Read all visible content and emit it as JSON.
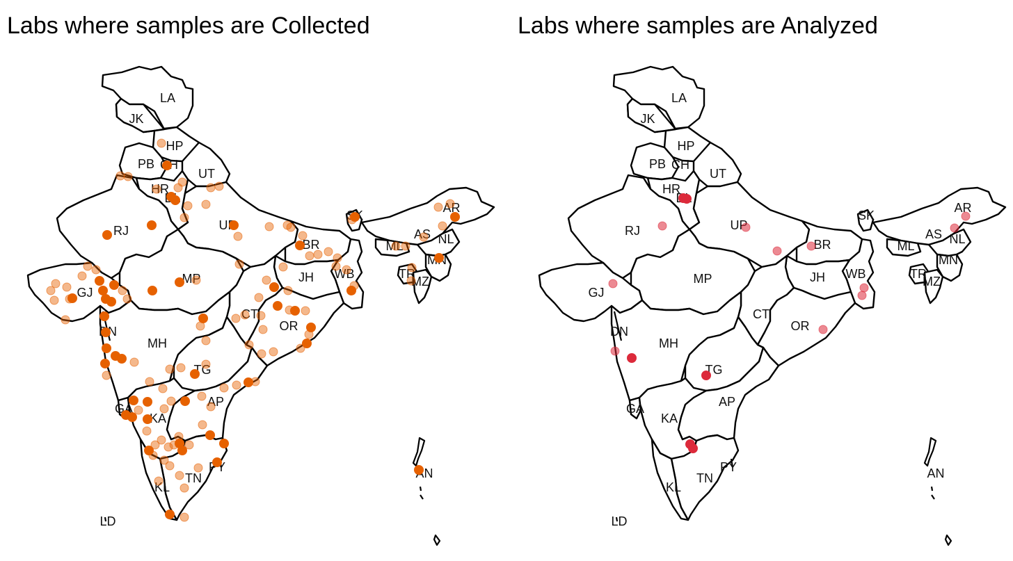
{
  "panels": [
    {
      "title": "Labs where samples are Collected",
      "point_color": "#E66100",
      "points": [
        [
          232,
          206,
          0.45
        ],
        [
          240,
          238,
          1
        ],
        [
          252,
          288,
          1
        ],
        [
          246,
          283,
          1
        ],
        [
          262,
          262,
          0.45
        ],
        [
          270,
          296,
          0.45
        ],
        [
          256,
          270,
          0.45
        ],
        [
          225,
          272,
          0.45
        ],
        [
          265,
          313,
          0.45
        ],
        [
          296,
          294,
          0.45
        ],
        [
          315,
          268,
          0.45
        ],
        [
          303,
          270,
          0.45
        ],
        [
          218,
          324,
          1
        ],
        [
          154,
          338,
          1
        ],
        [
          173,
          253,
          0.45
        ],
        [
          184,
          254,
          0.45
        ],
        [
          336,
          324,
          1
        ],
        [
          342,
          340,
          0.45
        ],
        [
          387,
          326,
          0.45
        ],
        [
          413,
          324,
          0.45
        ],
        [
          418,
          327,
          0.45
        ],
        [
          431,
          353,
          1
        ],
        [
          435,
          339,
          0.45
        ],
        [
          445,
          368,
          0.45
        ],
        [
          457,
          366,
          0.45
        ],
        [
          472,
          362,
          0.45
        ],
        [
          483,
          383,
          0.45
        ],
        [
          485,
          371,
          0.45
        ],
        [
          505,
          418,
          1
        ],
        [
          509,
          411,
          0.45
        ],
        [
          498,
          388,
          0.45
        ],
        [
          510,
          312,
          1
        ],
        [
          506,
          316,
          0.45
        ],
        [
          630,
          298,
          0.45
        ],
        [
          654,
          312,
          1
        ],
        [
          647,
          293,
          0.45
        ],
        [
          636,
          325,
          0.45
        ],
        [
          609,
          341,
          0.45
        ],
        [
          583,
          354,
          0.45
        ],
        [
          569,
          354,
          0.45
        ],
        [
          631,
          371,
          1
        ],
        [
          592,
          385,
          0.45
        ],
        [
          591,
          404,
          0.45
        ],
        [
          126,
          383,
          0.45
        ],
        [
          138,
          388,
          0.45
        ],
        [
          143,
          404,
          1
        ],
        [
          148,
          418,
          1
        ],
        [
          152,
          430,
          1
        ],
        [
          160,
          434,
          1
        ],
        [
          164,
          410,
          1
        ],
        [
          176,
          418,
          0.45
        ],
        [
          183,
          430,
          0.45
        ],
        [
          80,
          408,
          0.45
        ],
        [
          96,
          413,
          0.45
        ],
        [
          100,
          430,
          0.45
        ],
        [
          104,
          429,
          1
        ],
        [
          78,
          432,
          0.45
        ],
        [
          94,
          460,
          0.45
        ],
        [
          73,
          418,
          0.45
        ],
        [
          118,
          397,
          0.45
        ],
        [
          219,
          418,
          1
        ],
        [
          258,
          406,
          1
        ],
        [
          282,
          403,
          0.45
        ],
        [
          344,
          380,
          0.45
        ],
        [
          383,
          403,
          0.45
        ],
        [
          394,
          413,
          1
        ],
        [
          407,
          384,
          0.45
        ],
        [
          414,
          418,
          0.45
        ],
        [
          439,
          447,
          0.45
        ],
        [
          447,
          471,
          1
        ],
        [
          444,
          481,
          0.45
        ],
        [
          441,
          494,
          1
        ],
        [
          432,
          501,
          0.45
        ],
        [
          399,
          440,
          1
        ],
        [
          416,
          446,
          0.45
        ],
        [
          424,
          447,
          1
        ],
        [
          372,
          428,
          0.45
        ],
        [
          375,
          454,
          0.45
        ],
        [
          378,
          474,
          0.45
        ],
        [
          352,
          453,
          0.45
        ],
        [
          339,
          458,
          0.45
        ],
        [
          292,
          458,
          1
        ],
        [
          288,
          469,
          0.45
        ],
        [
          358,
          496,
          0.45
        ],
        [
          376,
          509,
          0.45
        ],
        [
          393,
          506,
          0.45
        ],
        [
          150,
          455,
          1
        ],
        [
          152,
          478,
          1
        ],
        [
          153,
          501,
          1
        ],
        [
          166,
          512,
          1
        ],
        [
          175,
          516,
          1
        ],
        [
          193,
          521,
          0.45
        ],
        [
          151,
          523,
          1
        ],
        [
          153,
          540,
          0.45
        ],
        [
          296,
          490,
          0.45
        ],
        [
          296,
          524,
          0.45
        ],
        [
          280,
          538,
          1
        ],
        [
          260,
          529,
          0.45
        ],
        [
          244,
          531,
          0.45
        ],
        [
          215,
          549,
          0.45
        ],
        [
          234,
          559,
          0.45
        ],
        [
          212,
          578,
          1
        ],
        [
          192,
          576,
          1
        ],
        [
          199,
          590,
          0.45
        ],
        [
          181,
          597,
          1
        ],
        [
          190,
          600,
          1
        ],
        [
          212,
          603,
          1
        ],
        [
          236,
          588,
          0.45
        ],
        [
          246,
          577,
          0.45
        ],
        [
          266,
          577,
          1
        ],
        [
          290,
          570,
          0.45
        ],
        [
          303,
          585,
          0.45
        ],
        [
          291,
          611,
          0.45
        ],
        [
          340,
          554,
          0.45
        ],
        [
          357,
          550,
          1
        ],
        [
          367,
          549,
          0.45
        ],
        [
          322,
          558,
          0.45
        ],
        [
          258,
          638,
          1
        ],
        [
          262,
          648,
          1
        ],
        [
          257,
          628,
          0.45
        ],
        [
          250,
          640,
          0.45
        ],
        [
          272,
          640,
          0.45
        ],
        [
          242,
          643,
          0.45
        ],
        [
          232,
          633,
          0.45
        ],
        [
          223,
          640,
          0.45
        ],
        [
          214,
          648,
          1
        ],
        [
          220,
          655,
          0.45
        ],
        [
          211,
          620,
          0.45
        ],
        [
          302,
          626,
          1
        ],
        [
          322,
          638,
          1
        ],
        [
          236,
          662,
          0.45
        ],
        [
          244,
          670,
          0.45
        ],
        [
          285,
          673,
          0.45
        ],
        [
          258,
          684,
          0.45
        ],
        [
          312,
          665,
          1
        ],
        [
          228,
          692,
          0.45
        ],
        [
          265,
          702,
          0.45
        ],
        [
          244,
          740,
          1
        ],
        [
          265,
          744,
          0.45
        ],
        [
          602,
          676,
          1
        ]
      ]
    },
    {
      "title": "Labs where samples are Analyzed",
      "point_color": "#DC2A3B",
      "points": [
        [
          982,
          285,
          1
        ],
        [
          987,
          286,
          1
        ],
        [
          952,
          325,
          0.55
        ],
        [
          1072,
          327,
          0.55
        ],
        [
          1117,
          361,
          0.55
        ],
        [
          1166,
          354,
          0.55
        ],
        [
          881,
          408,
          0.55
        ],
        [
          1388,
          311,
          0.55
        ],
        [
          1372,
          328,
          0.55
        ],
        [
          1242,
          414,
          0.55
        ],
        [
          1239,
          425,
          0.55
        ],
        [
          1183,
          474,
          0.55
        ],
        [
          884,
          505,
          0.55
        ],
        [
          908,
          515,
          1
        ],
        [
          1015,
          540,
          1
        ],
        [
          992,
          639,
          1
        ],
        [
          996,
          645,
          1
        ]
      ]
    }
  ],
  "state_labels": [
    [
      "LA",
      241,
      147
    ],
    [
      "JK",
      196,
      177
    ],
    [
      "HP",
      251,
      216
    ],
    [
      "PB",
      210,
      242
    ],
    [
      "CH",
      243,
      243
    ],
    [
      "UT",
      297,
      256
    ],
    [
      "HR",
      230,
      278
    ],
    [
      "DL",
      248,
      291
    ],
    [
      "RJ",
      174,
      338
    ],
    [
      "UP",
      327,
      330
    ],
    [
      "BR",
      447,
      358
    ],
    [
      "SK",
      510,
      316
    ],
    [
      "AR",
      649,
      305
    ],
    [
      "AS",
      607,
      343
    ],
    [
      "NL",
      641,
      350
    ],
    [
      "ML",
      567,
      360
    ],
    [
      "MN",
      628,
      380
    ],
    [
      "TR",
      585,
      400
    ],
    [
      "MZ",
      604,
      411
    ],
    [
      "JH",
      440,
      405
    ],
    [
      "WB",
      495,
      400
    ],
    [
      "GJ",
      122,
      427
    ],
    [
      "MP",
      275,
      407
    ],
    [
      "CT",
      359,
      458
    ],
    [
      "OR",
      415,
      475
    ],
    [
      "DN",
      155,
      483
    ],
    [
      "MH",
      226,
      500
    ],
    [
      "TG",
      291,
      538
    ],
    [
      "GA",
      178,
      594
    ],
    [
      "AP",
      310,
      584
    ],
    [
      "KA",
      227,
      608
    ],
    [
      "PY",
      312,
      678
    ],
    [
      "TN",
      278,
      694
    ],
    [
      "KL",
      233,
      707
    ],
    [
      "LD",
      155,
      756
    ],
    [
      "AN",
      610,
      687
    ]
  ]
}
